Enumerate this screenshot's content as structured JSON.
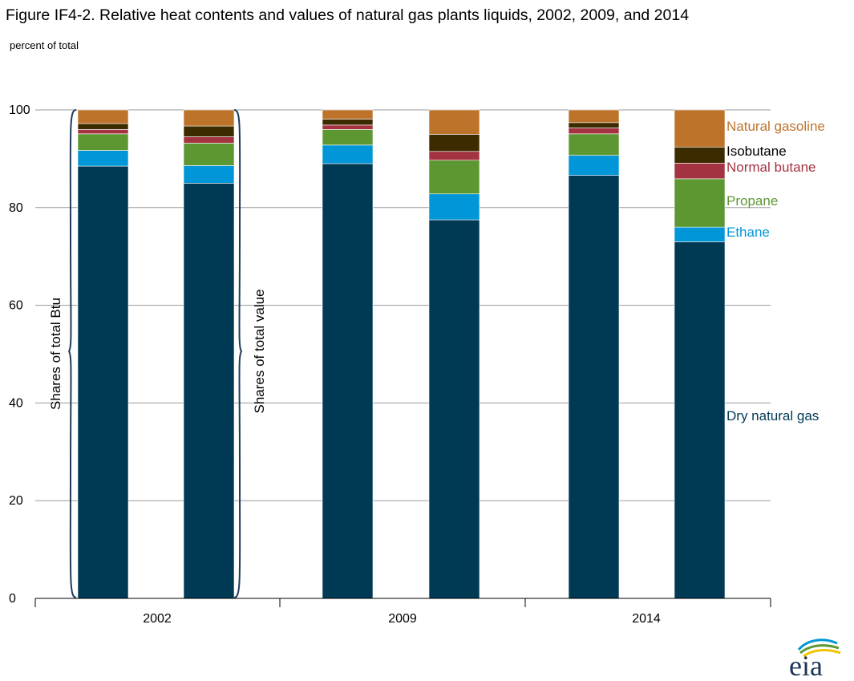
{
  "chart_data": {
    "type": "bar",
    "stacked": true,
    "title": "Figure IF4-2. Relative heat contents and values of natural gas plants liquids, 2002, 2009, and 2014",
    "subtitle": "percent of total",
    "ylim": [
      0,
      100
    ],
    "yticks": [
      "0",
      "20",
      "40",
      "60",
      "80",
      "100"
    ],
    "groups": [
      "2002",
      "2009",
      "2014"
    ],
    "brace_labels": [
      "Shares of total Btu",
      "Shares of total value"
    ],
    "stack_order": [
      "Dry natural gas",
      "Ethane",
      "Propane",
      "Normal butane",
      "Isobutane",
      "Natural gasoline"
    ],
    "series": [
      {
        "name": "Dry natural gas",
        "color": "#003953",
        "values": {
          "2002-btu": 88.5,
          "2002-value": 85.0,
          "2009-btu": 89.0,
          "2009-value": 77.5,
          "2014-btu": 86.6,
          "2014-value": 73.0
        }
      },
      {
        "name": "Ethane",
        "color": "#0096d7",
        "values": {
          "2002-btu": 3.2,
          "2002-value": 3.6,
          "2009-btu": 3.8,
          "2009-value": 5.3,
          "2014-btu": 4.1,
          "2014-value": 3.0
        }
      },
      {
        "name": "Propane",
        "color": "#5d9732",
        "values": {
          "2002-btu": 3.4,
          "2002-value": 4.6,
          "2009-btu": 3.2,
          "2009-value": 6.9,
          "2014-btu": 4.4,
          "2014-value": 9.9
        }
      },
      {
        "name": "Normal butane",
        "color": "#a33340",
        "values": {
          "2002-btu": 0.9,
          "2002-value": 1.3,
          "2009-btu": 0.9,
          "2009-value": 1.8,
          "2014-btu": 1.2,
          "2014-value": 3.2
        }
      },
      {
        "name": "Isobutane",
        "color": "#3d2b00",
        "values": {
          "2002-btu": 1.2,
          "2002-value": 2.2,
          "2009-btu": 1.2,
          "2009-value": 3.5,
          "2014-btu": 1.1,
          "2014-value": 3.3
        }
      },
      {
        "name": "Natural gasoline",
        "color": "#bd732a",
        "values": {
          "2002-btu": 2.8,
          "2002-value": 3.3,
          "2009-btu": 1.9,
          "2009-value": 5.0,
          "2014-btu": 2.6,
          "2014-value": 7.6
        }
      }
    ],
    "bars": [
      "2002-btu",
      "2002-value",
      "2009-btu",
      "2009-value",
      "2014-btu",
      "2014-value"
    ],
    "grid": true
  }
}
